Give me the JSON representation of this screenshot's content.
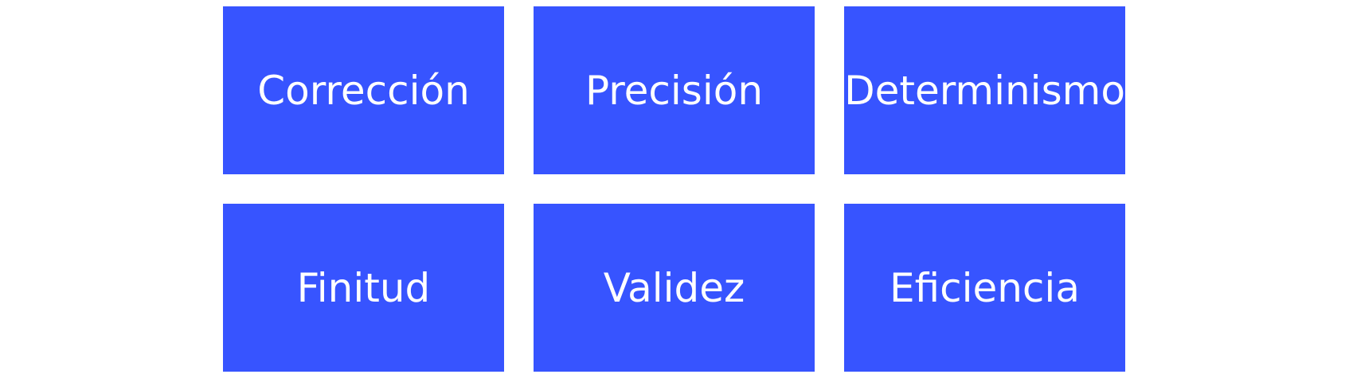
{
  "colors": {
    "tile_background": "#3754ff",
    "tile_text": "#ffffff",
    "page_background": "#ffffff"
  },
  "tiles": [
    {
      "label": "Corrección"
    },
    {
      "label": "Precisión"
    },
    {
      "label": "Determinismo"
    },
    {
      "label": "Finitud"
    },
    {
      "label": "Validez"
    },
    {
      "label": "Eficiencia"
    }
  ]
}
